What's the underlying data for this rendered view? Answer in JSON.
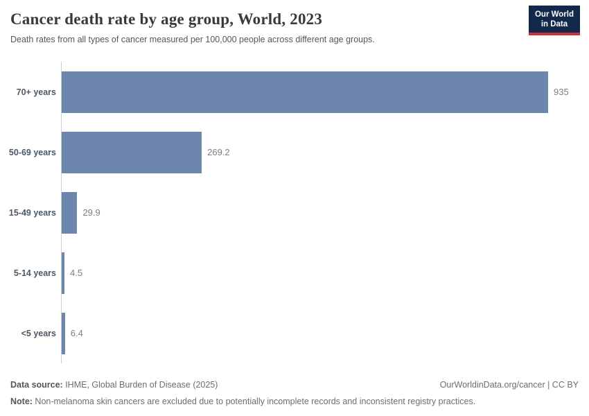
{
  "header": {
    "title": "Cancer death rate by age group, World, 2023",
    "subtitle": "Death rates from all types of cancer measured per 100,000 people across different age groups.",
    "logo": {
      "line1": "Our World",
      "line2": "in Data"
    }
  },
  "chart_data": {
    "type": "bar",
    "orientation": "horizontal",
    "title": "Cancer death rate by age group, World, 2023",
    "categories": [
      "70+ years",
      "50-69 years",
      "15-49 years",
      "5-14 years",
      "<5 years"
    ],
    "values": [
      935,
      269.2,
      29.9,
      4.5,
      6.4
    ],
    "value_labels": [
      "935",
      "269.2",
      "29.9",
      "4.5",
      "6.4"
    ],
    "xlabel": "",
    "ylabel": "",
    "unit": "deaths per 100,000 people",
    "grid": false,
    "legend": false,
    "bar_color": "#6d86ad",
    "axis_line_color": "#cfcfcf"
  },
  "footer": {
    "source_label": "Data source:",
    "source_text": " IHME, Global Burden of Disease (2025)",
    "link_text": "OurWorldinData.org/cancer | CC BY",
    "note_label": "Note:",
    "note_text": " Non-melanoma skin cancers are excluded due to potentially incomplete records and inconsistent registry practices."
  }
}
